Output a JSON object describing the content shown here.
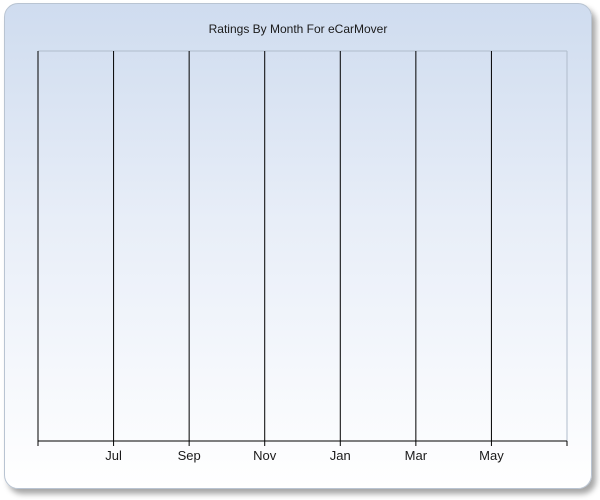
{
  "chart_data": {
    "type": "line",
    "title": "Ratings By Month For eCarMover",
    "xlabel": "",
    "ylabel": "",
    "x_tick_labels": [
      "Jul",
      "Sep",
      "Nov",
      "Jan",
      "Mar",
      "May"
    ],
    "series": [],
    "grid": true,
    "legend": "none"
  }
}
